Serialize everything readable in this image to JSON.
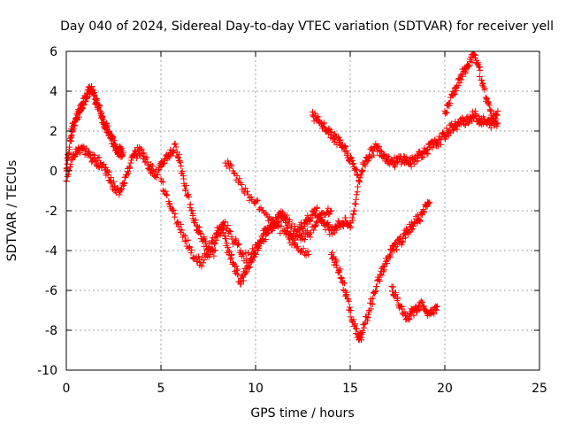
{
  "chart_data": {
    "type": "scatter",
    "title": "Day 040 of 2024, Sidereal Day-to-day VTEC variation (SDTVAR) for receiver yell",
    "xlabel": "GPS time / hours",
    "ylabel": "SDTVAR / TECUs",
    "xlim": [
      0,
      25
    ],
    "ylim": [
      -10,
      6
    ],
    "xticks": [
      0,
      5,
      10,
      15,
      20,
      25
    ],
    "yticks": [
      -10,
      -8,
      -6,
      -4,
      -2,
      0,
      2,
      4,
      6
    ],
    "grid": true,
    "marker": "+",
    "color": "#ff0000",
    "series": [
      {
        "x": [
          0.0,
          0.1,
          0.2,
          0.3,
          0.4,
          0.5,
          0.6,
          0.7,
          0.8,
          0.9,
          1.0,
          1.1,
          1.2,
          1.3,
          1.4,
          1.5,
          1.6,
          1.7,
          1.8,
          1.9,
          2.0,
          2.1,
          2.2,
          2.3,
          2.4,
          2.5,
          2.6,
          2.7,
          2.8,
          2.9,
          3.0
        ],
        "y": [
          0.0,
          0.8,
          1.5,
          2.0,
          2.3,
          2.6,
          2.8,
          3.0,
          3.1,
          3.4,
          3.7,
          3.9,
          4.0,
          4.1,
          3.9,
          3.6,
          3.4,
          3.3,
          3.0,
          2.7,
          2.4,
          2.2,
          2.0,
          1.8,
          1.6,
          1.4,
          1.2,
          1.1,
          1.0,
          0.9,
          0.9
        ]
      },
      {
        "x": [
          0.0,
          0.2,
          0.4,
          0.6,
          0.8,
          1.0,
          1.2,
          1.4,
          1.6,
          1.8,
          2.0,
          2.2,
          2.4,
          2.6,
          2.8,
          3.0,
          3.2,
          3.4,
          3.6,
          3.8,
          4.0,
          4.2,
          4.4,
          4.6,
          4.8,
          5.0,
          5.2,
          5.4,
          5.6,
          5.8,
          6.0,
          6.2,
          6.4,
          6.6,
          6.8,
          7.0,
          7.2,
          7.4,
          7.6,
          7.8,
          8.0,
          8.2,
          8.4,
          8.6,
          8.8,
          9.0,
          9.2,
          9.4,
          9.6,
          9.8,
          10.0,
          10.2,
          10.4,
          10.6,
          10.8,
          11.0,
          11.2,
          11.4,
          11.6,
          11.8,
          12.0,
          12.2,
          12.4,
          12.6,
          12.8,
          13.0,
          13.2,
          13.4,
          13.6,
          13.8,
          14.0,
          14.2,
          14.4,
          14.6,
          14.8,
          15.0,
          15.2,
          15.4,
          15.6,
          15.8,
          16.0,
          16.2,
          16.4,
          16.6,
          16.8,
          17.0,
          17.2,
          17.4,
          17.6,
          17.8,
          18.0,
          18.2,
          18.4,
          18.6,
          18.8,
          19.0,
          19.2,
          19.4,
          19.6,
          19.8,
          20.0,
          20.2,
          20.4,
          20.6,
          20.8,
          21.0,
          21.2,
          21.4,
          21.6,
          21.8,
          22.0,
          22.2,
          22.4,
          22.6,
          22.8
        ],
        "y": [
          -0.5,
          0.2,
          0.8,
          1.0,
          1.2,
          1.0,
          0.8,
          0.6,
          0.5,
          0.4,
          0.2,
          -0.2,
          -0.6,
          -1.0,
          -1.0,
          -0.6,
          -0.2,
          0.4,
          0.8,
          1.0,
          0.9,
          0.6,
          0.2,
          0.0,
          -0.2,
          0.2,
          0.6,
          0.8,
          1.0,
          1.2,
          0.5,
          -0.4,
          -1.2,
          -2.0,
          -2.6,
          -3.0,
          -3.4,
          -3.8,
          -4.2,
          -4.0,
          -3.2,
          -2.8,
          -3.4,
          -4.2,
          -4.6,
          -5.0,
          -5.6,
          -5.2,
          -4.8,
          -4.4,
          -4.0,
          -3.6,
          -3.2,
          -3.0,
          -2.8,
          -2.6,
          -2.4,
          -2.2,
          -2.6,
          -3.2,
          -3.6,
          -3.2,
          -2.8,
          -2.6,
          -2.4,
          -2.2,
          -2.0,
          -2.2,
          -2.6,
          -2.8,
          -3.0,
          -2.8,
          -2.7,
          -2.6,
          -2.6,
          -2.8,
          -2.0,
          -0.8,
          0.0,
          0.5,
          0.8,
          1.0,
          1.2,
          1.0,
          0.8,
          0.6,
          0.5,
          0.4,
          0.6,
          0.6,
          0.5,
          0.4,
          0.6,
          0.8,
          0.9,
          1.0,
          1.2,
          1.3,
          1.4,
          1.6,
          1.8,
          2.0,
          2.2,
          2.3,
          2.4,
          2.5,
          2.6,
          2.7,
          2.8,
          2.6,
          2.5,
          2.4,
          2.4,
          2.4,
          2.4
        ]
      },
      {
        "x": [
          5.0,
          5.3,
          5.6,
          5.9,
          6.2,
          6.5,
          6.8,
          7.1,
          7.4,
          7.7,
          8.0,
          8.3,
          8.6,
          8.9,
          9.2,
          9.5,
          9.8,
          10.1,
          10.4,
          10.7,
          11.0,
          11.3,
          11.6,
          11.9,
          12.2,
          12.5,
          12.8,
          13.1,
          13.4,
          13.7,
          14.0
        ],
        "y": [
          -0.4,
          -1.2,
          -2.0,
          -2.6,
          -3.2,
          -3.8,
          -4.4,
          -4.6,
          -4.2,
          -3.6,
          -3.0,
          -2.6,
          -3.0,
          -3.6,
          -4.0,
          -4.4,
          -4.2,
          -3.8,
          -3.4,
          -3.0,
          -2.6,
          -2.2,
          -2.4,
          -2.8,
          -3.2,
          -3.4,
          -3.2,
          -2.8,
          -2.4,
          -2.2,
          -2.0
        ]
      },
      {
        "x": [
          14.0,
          14.2,
          14.4,
          14.6,
          14.8,
          15.0,
          15.2,
          15.4,
          15.5,
          15.6,
          15.8,
          16.0,
          16.2,
          16.4,
          16.6,
          16.8,
          17.0,
          17.2,
          17.4,
          17.6,
          17.8,
          18.0,
          18.2,
          18.4,
          18.6,
          18.8,
          19.0,
          19.2
        ],
        "y": [
          -4.2,
          -4.6,
          -5.0,
          -5.6,
          -6.2,
          -7.0,
          -7.8,
          -8.2,
          -8.4,
          -8.2,
          -7.6,
          -7.0,
          -6.4,
          -5.8,
          -5.2,
          -4.8,
          -4.4,
          -4.0,
          -3.8,
          -3.6,
          -3.4,
          -3.0,
          -2.8,
          -2.6,
          -2.4,
          -2.2,
          -1.8,
          -1.6
        ]
      },
      {
        "x": [
          17.2,
          17.4,
          17.6,
          17.8,
          18.0,
          18.2,
          18.4,
          18.6,
          18.8,
          19.0,
          19.2,
          19.4,
          19.6
        ],
        "y": [
          -5.8,
          -6.2,
          -6.8,
          -7.2,
          -7.4,
          -7.2,
          -7.0,
          -6.8,
          -6.6,
          -7.0,
          -7.2,
          -7.0,
          -6.8
        ]
      },
      {
        "x": [
          13.0,
          13.2,
          13.4,
          13.6,
          13.8,
          14.0,
          14.2,
          14.4,
          14.6,
          14.8,
          15.0,
          15.2,
          15.4
        ],
        "y": [
          2.8,
          2.6,
          2.4,
          2.2,
          2.0,
          1.8,
          1.6,
          1.4,
          1.2,
          1.0,
          0.6,
          0.2,
          -0.2
        ]
      },
      {
        "x": [
          8.4,
          8.8,
          9.2,
          9.6,
          10.0,
          10.4,
          10.8,
          11.2,
          11.6,
          12.0,
          12.4,
          12.8
        ],
        "y": [
          0.4,
          0.0,
          -0.6,
          -1.2,
          -1.6,
          -2.0,
          -2.4,
          -2.8,
          -3.2,
          -3.6,
          -4.0,
          -4.2
        ]
      },
      {
        "x": [
          20.0,
          20.2,
          20.4,
          20.6,
          20.8,
          21.0,
          21.2,
          21.4,
          21.6,
          21.8,
          22.0,
          22.2,
          22.4,
          22.6,
          22.8
        ],
        "y": [
          3.0,
          3.4,
          3.8,
          4.2,
          4.6,
          5.0,
          5.2,
          5.6,
          5.8,
          5.2,
          4.4,
          3.6,
          3.0,
          2.6,
          3.0
        ]
      }
    ]
  }
}
